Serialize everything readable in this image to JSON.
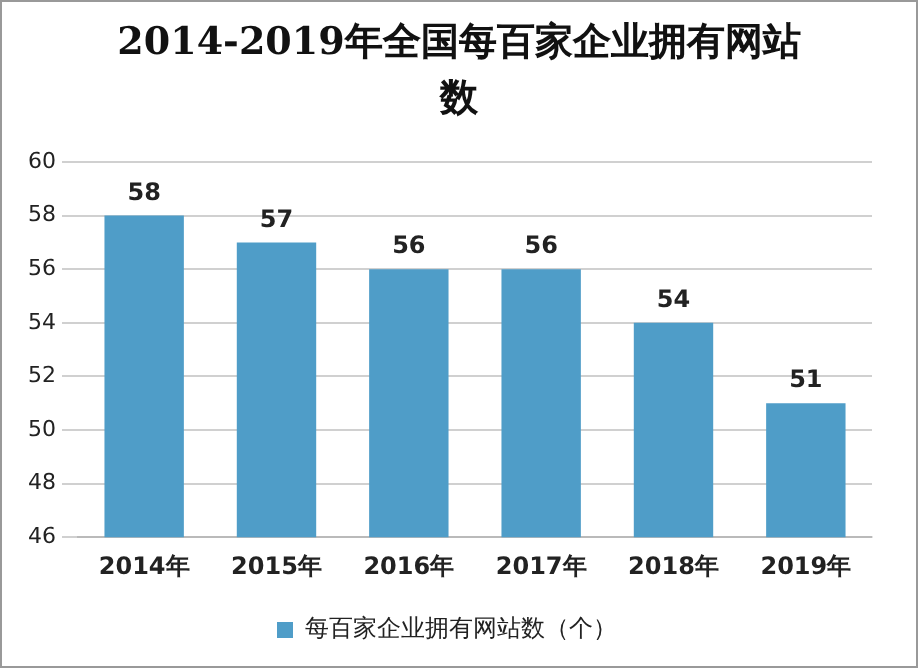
{
  "chart_data": {
    "type": "bar",
    "title": "2014-2019年全国每百家企业拥有网站数",
    "categories": [
      "2014年",
      "2015年",
      "2016年",
      "2017年",
      "2018年",
      "2019年"
    ],
    "series": [
      {
        "name": "每百家企业拥有网站数（个）",
        "color": "#4f9dc8",
        "values": [
          58,
          57,
          56,
          56,
          54,
          51
        ]
      }
    ],
    "ylim": [
      46,
      60
    ],
    "yticks": [
      46,
      48,
      50,
      52,
      54,
      56,
      58,
      60
    ],
    "grid": "y",
    "legend": "bottom",
    "data_labels": true
  }
}
